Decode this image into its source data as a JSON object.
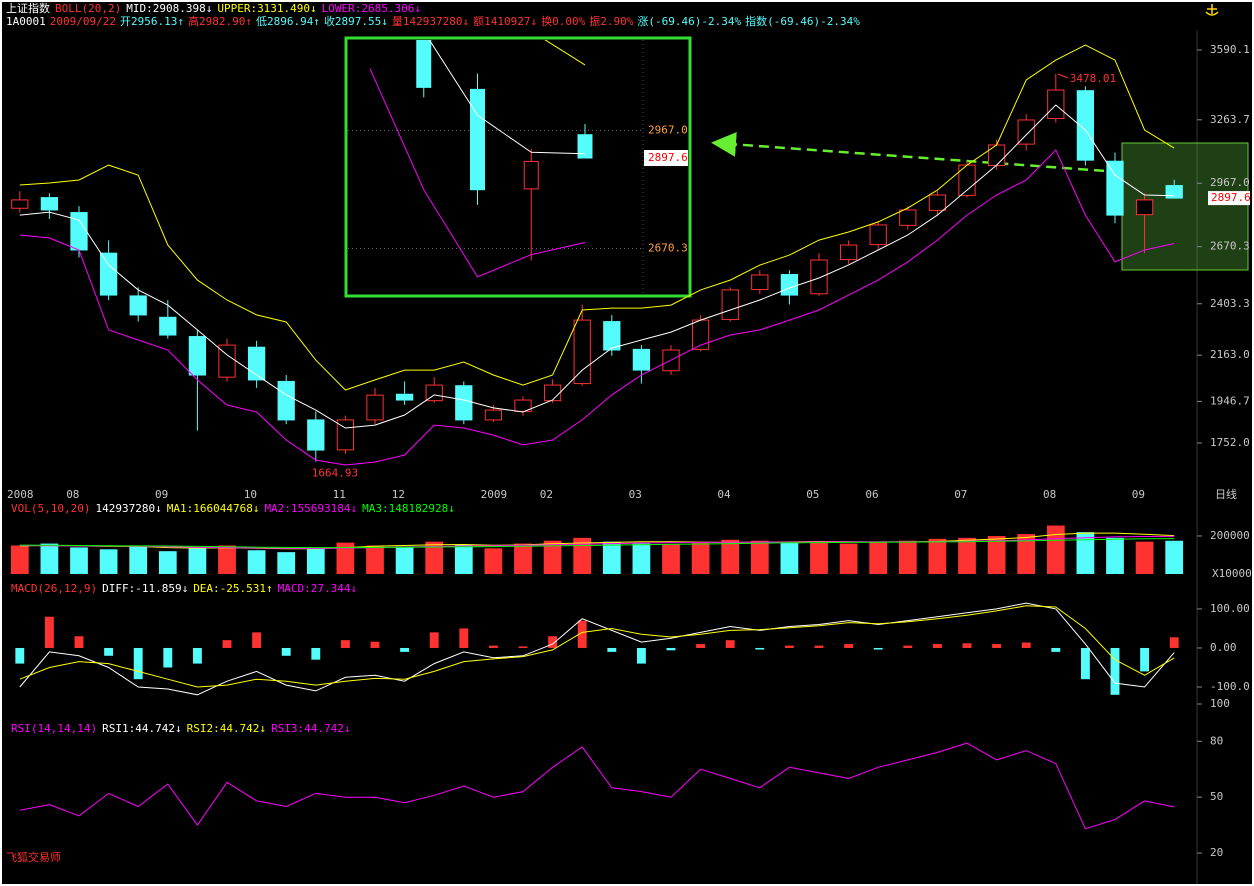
{
  "footer": "飞狐交易师",
  "chart_data": [
    {
      "type": "candlestick",
      "title": "上证指数",
      "legend": [
        {
          "text": "BOLL(20,2)",
          "color": "#ff3232"
        },
        {
          "text": "MID:2908.398↓",
          "color": "#ffffff"
        },
        {
          "text": "UPPER:3131.490↓",
          "color": "#ffff00"
        },
        {
          "text": "LOWER:2685.306↓",
          "color": "#ff00ff"
        }
      ],
      "info": [
        {
          "text": "1A0001",
          "color": "#ffffff"
        },
        {
          "text": "2009/09/22",
          "color": "#ff3232"
        },
        {
          "text": "开2956.13↑",
          "color": "#54fcfc"
        },
        {
          "text": "高2982.90↑",
          "color": "#ff3232"
        },
        {
          "text": "低2896.94↑",
          "color": "#54fcfc"
        },
        {
          "text": "收2897.55↓",
          "color": "#54fcfc"
        },
        {
          "text": "量142937280↓",
          "color": "#ff3232"
        },
        {
          "text": "额1410927↓",
          "color": "#ff3232"
        },
        {
          "text": "换0.00%",
          "color": "#ff3232"
        },
        {
          "text": "振2.90%",
          "color": "#ff3232"
        },
        {
          "text": "涨(-69.46)-2.34%",
          "color": "#54fcfc"
        },
        {
          "text": "指数(-69.46)-2.34%",
          "color": "#54fcfc"
        }
      ],
      "categories": [
        "2008",
        null,
        "08",
        null,
        null,
        "09",
        null,
        null,
        "10",
        null,
        null,
        "11",
        null,
        "12",
        null,
        null,
        "2009",
        null,
        "02",
        null,
        null,
        "03",
        null,
        null,
        "04",
        null,
        null,
        "05",
        null,
        "06",
        null,
        null,
        "07",
        null,
        null,
        "08",
        null,
        null,
        "09",
        null
      ],
      "period_label": "日线",
      "open": [
        2850,
        2900,
        2830,
        2640,
        2440,
        2340,
        2250,
        2060,
        2200,
        2040,
        1860,
        1720,
        1860,
        1980,
        1950,
        2020,
        1860,
        1900,
        1950,
        2030,
        2320,
        2190,
        2090,
        2190,
        2330,
        2470,
        2540,
        2450,
        2610,
        2680,
        2770,
        2840,
        2910,
        3050,
        3150,
        3270,
        3400,
        3070,
        2820,
        2956.13
      ],
      "high": [
        2930,
        2920,
        2860,
        2700,
        2480,
        2420,
        2280,
        2240,
        2230,
        2070,
        1900,
        1880,
        2010,
        2040,
        2060,
        2040,
        1930,
        1970,
        2050,
        2400,
        2350,
        2210,
        2210,
        2350,
        2480,
        2560,
        2560,
        2640,
        2700,
        2790,
        2860,
        2930,
        3070,
        3170,
        3290,
        3478.01,
        3420,
        3110,
        2920,
        2982.9
      ],
      "low": [
        2830,
        2800,
        2620,
        2420,
        2320,
        2240,
        1810,
        2040,
        2010,
        1840,
        1664.93,
        1700,
        1840,
        1930,
        1940,
        1840,
        1850,
        1880,
        1940,
        2020,
        2160,
        2030,
        2070,
        2180,
        2320,
        2450,
        2400,
        2440,
        2590,
        2660,
        2750,
        2820,
        2900,
        3030,
        3120,
        3250,
        3050,
        2780,
        2640,
        2896.94
      ],
      "close": [
        2889,
        2842,
        2655,
        2444,
        2351,
        2257,
        2070,
        2210,
        2047,
        1860,
        1719,
        1860,
        1976,
        1953,
        2023,
        1860,
        1906,
        1953,
        2023,
        2327,
        2187,
        2093,
        2187,
        2327,
        2468,
        2538,
        2444,
        2608,
        2678,
        2772,
        2842,
        2912,
        3052,
        3146,
        3263,
        3403,
        3075,
        2818,
        2889,
        2897.55
      ],
      "up_color": "#ff3232",
      "down_color": "#54fcfc",
      "series": [
        {
          "color": "#ffffff",
          "values": [
            2818,
            2832,
            2795,
            2585,
            2468,
            2397,
            2281,
            2164,
            2070,
            1977,
            1906,
            1822,
            1836,
            1883,
            1977,
            1953,
            1916,
            1897,
            1953,
            2093,
            2196,
            2234,
            2271,
            2327,
            2374,
            2421,
            2477,
            2524,
            2585,
            2655,
            2725,
            2818,
            2935,
            3052,
            3193,
            3333,
            3216,
            3005,
            2912,
            2908.398
          ]
        },
        {
          "color": "#ffff00",
          "values": [
            2959,
            2968,
            2982,
            3052,
            3005,
            2678,
            2514,
            2421,
            2351,
            2318,
            2140,
            2000,
            2047,
            2093,
            2093,
            2131,
            2070,
            2023,
            2070,
            2374,
            2383,
            2383,
            2397,
            2468,
            2514,
            2584,
            2631,
            2701,
            2739,
            2786,
            2851,
            2935,
            3052,
            3146,
            3450,
            3543,
            3613,
            3543,
            3216,
            3131.49
          ]
        },
        {
          "color": "#ff00ff",
          "values": [
            2725,
            2711,
            2655,
            2281,
            2234,
            2187,
            2047,
            1930,
            1897,
            1766,
            1672,
            1649,
            1663,
            1696,
            1836,
            1822,
            1789,
            1743,
            1766,
            1860,
            1977,
            2070,
            2140,
            2210,
            2257,
            2281,
            2327,
            2374,
            2444,
            2514,
            2599,
            2701,
            2818,
            2912,
            2982,
            3122,
            2818,
            2599,
            2655,
            2685.306
          ]
        }
      ],
      "ylim": [
        1579,
        3637
      ],
      "yticks": [
        3590.1,
        3263.7,
        {
          "value": 2967,
          "label": "2967.0"
        },
        2670.3,
        2403.3,
        {
          "value": 2163,
          "label": "2163.0"
        },
        1946.7,
        {
          "value": 1752,
          "label": "1752.0"
        }
      ],
      "last_price_label": "2897.6",
      "inset": {
        "xlim": [
          35,
          39
        ],
        "ylim": [
          2556,
          3194
        ]
      }
    },
    {
      "type": "volume",
      "legend": [
        {
          "text": "VOL(5,10,20)",
          "color": "#ff3232"
        },
        {
          "text": "142937280↓",
          "color": "#ffffff"
        },
        {
          "text": "MA1:166044768↓",
          "color": "#ffff00"
        },
        {
          "text": "MA2:155693184↓",
          "color": "#ff00ff"
        },
        {
          "text": "MA3:148182928↓",
          "color": "#00ff00"
        }
      ],
      "values": [
        150000,
        160000,
        140000,
        130000,
        145000,
        120000,
        135000,
        150000,
        125000,
        115000,
        140000,
        165000,
        150000,
        145000,
        170000,
        155000,
        135000,
        160000,
        175000,
        190000,
        170000,
        160000,
        155000,
        165000,
        180000,
        175000,
        170000,
        165000,
        160000,
        170000,
        175000,
        185000,
        190000,
        200000,
        210000,
        255000,
        220000,
        190000,
        170000,
        175000
      ],
      "series": [
        {
          "color": "#ffff00",
          "values": [
            148000,
            150000,
            148000,
            145000,
            145000,
            139000,
            136000,
            138000,
            135000,
            133000,
            133000,
            139000,
            146000,
            150000,
            154000,
            155000,
            151000,
            153000,
            159000,
            163000,
            166000,
            170000,
            170000,
            168000,
            166000,
            168000,
            169000,
            171000,
            170000,
            168000,
            169000,
            171000,
            178000,
            184000,
            192000,
            208000,
            215000,
            215000,
            209000,
            202000
          ]
        },
        {
          "color": "#ff00ff",
          "values": [
            150000,
            149000,
            148000,
            147000,
            146000,
            143000,
            140000,
            139000,
            137000,
            135000,
            134000,
            136000,
            139000,
            142000,
            145000,
            147000,
            149000,
            151000,
            154000,
            157000,
            160000,
            163000,
            165000,
            166000,
            167000,
            168000,
            168000,
            169000,
            170000,
            170000,
            170000,
            170000,
            172000,
            175000,
            179000,
            186000,
            191000,
            195000,
            197000,
            198000
          ]
        },
        {
          "color": "#00ff00",
          "values": [
            152000,
            151000,
            150000,
            149000,
            148000,
            147000,
            145000,
            143000,
            141000,
            140000,
            139000,
            139000,
            140000,
            141000,
            142000,
            143000,
            144000,
            146000,
            148000,
            150000,
            152000,
            154000,
            156000,
            158000,
            160000,
            162000,
            164000,
            165000,
            166000,
            167000,
            168000,
            169000,
            170000,
            172000,
            174000,
            177000,
            180000,
            183000,
            185000,
            186000
          ]
        }
      ],
      "ylim": [
        0,
        284000
      ],
      "yticks": [
        200000
      ],
      "unit_label": "X10000"
    },
    {
      "type": "macd",
      "legend": [
        {
          "text": "MACD(26,12,9)",
          "color": "#ff3232"
        },
        {
          "text": "DIFF:-11.859↓",
          "color": "#ffffff"
        },
        {
          "text": "DEA:-25.531↑",
          "color": "#ffff00"
        },
        {
          "text": "MACD:27.344↓",
          "color": "#ff00ff"
        }
      ],
      "values": [
        -40,
        80,
        30,
        -20,
        -80,
        -50,
        -40,
        20,
        40,
        -20,
        -30,
        20,
        16,
        -10,
        40,
        50,
        6,
        4,
        30,
        70,
        -10,
        -40,
        -6,
        10,
        20,
        -4,
        6,
        6,
        10,
        -4,
        6,
        10,
        12,
        10,
        14,
        -10,
        -80,
        -120,
        -60,
        27.344
      ],
      "up_color": "#ff3232",
      "down_color": "#54fcfc",
      "series": [
        {
          "color": "#ffffff",
          "values": [
            -100,
            -10,
            -20,
            -50,
            -100,
            -105,
            -120,
            -85,
            -60,
            -95,
            -110,
            -75,
            -70,
            -85,
            -40,
            -10,
            -25,
            -20,
            10,
            75,
            45,
            15,
            25,
            40,
            55,
            45,
            55,
            60,
            70,
            60,
            70,
            80,
            90,
            100,
            115,
            100,
            10,
            -90,
            -100,
            -11.859
          ]
        },
        {
          "color": "#ffff00",
          "values": [
            -80,
            -50,
            -35,
            -40,
            -60,
            -80,
            -100,
            -95,
            -80,
            -85,
            -95,
            -85,
            -78,
            -80,
            -60,
            -35,
            -28,
            -22,
            -5,
            40,
            50,
            35,
            28,
            35,
            45,
            47,
            52,
            57,
            65,
            62,
            67,
            75,
            84,
            95,
            108,
            105,
            50,
            -30,
            -70,
            -25.531
          ]
        }
      ],
      "ylim": [
        -164,
        128
      ],
      "yticks": [
        {
          "value": 100,
          "label": "100.00"
        },
        {
          "value": 0,
          "label": "0.00"
        },
        {
          "value": -100,
          "label": "-100.0"
        }
      ]
    },
    {
      "type": "line",
      "legend": [
        {
          "text": "RSI(14,14,14)",
          "color": "#ff00ff"
        },
        {
          "text": "RSI1:44.742↓",
          "color": "#ffffff"
        },
        {
          "text": "RSI2:44.742↓",
          "color": "#ffff00"
        },
        {
          "text": "RSI3:44.742↓",
          "color": "#ff00ff"
        }
      ],
      "series": [
        {
          "color": "#ff00ff",
          "values": [
            43,
            46,
            40,
            52,
            45,
            57,
            35,
            58,
            48,
            45,
            52,
            50,
            50,
            47,
            51,
            56,
            50,
            53,
            66,
            77,
            55,
            53,
            50,
            65,
            60,
            55,
            66,
            63,
            60,
            66,
            70,
            74,
            79,
            70,
            75,
            68,
            33,
            38,
            48,
            44.742
          ]
        }
      ],
      "ylim": [
        5,
        100
      ],
      "yticks": [
        100,
        80,
        50,
        20
      ]
    }
  ]
}
